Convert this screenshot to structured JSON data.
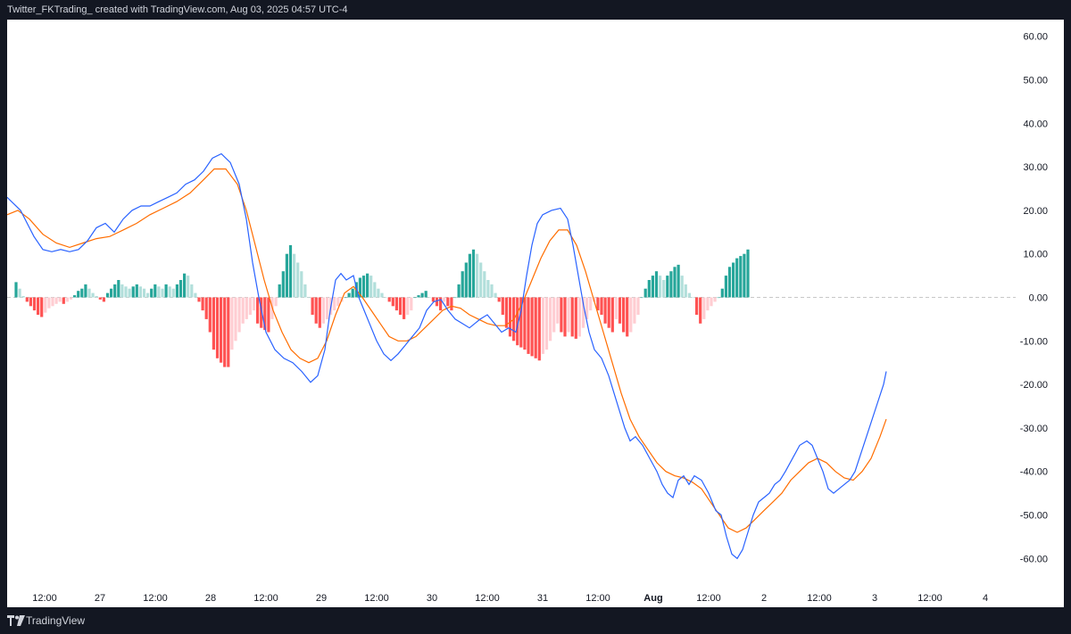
{
  "header": {
    "title": "Twitter_FKTrading_ created with TradingView.com, Aug 03, 2025 04:57 UTC-4"
  },
  "footer": {
    "brand": "TradingView",
    "logo_icon": "tradingview-logo-icon"
  },
  "chart_data": {
    "type": "histogram-line",
    "indicator": "MACD",
    "ylim": [
      -65,
      63
    ],
    "y_ticks": [
      "60.00",
      "50.00",
      "40.00",
      "30.00",
      "20.00",
      "10.00",
      "0.00",
      "-10.00",
      "-20.00",
      "-30.00",
      "-40.00",
      "-50.00",
      "-60.00"
    ],
    "y_tick_values": [
      60,
      50,
      40,
      30,
      20,
      10,
      0,
      -10,
      -20,
      -30,
      -40,
      -50,
      -60
    ],
    "x_range": [
      0,
      1090
    ],
    "x_ticks": [
      {
        "label": "12:00",
        "x": 42,
        "bold": false
      },
      {
        "label": "27",
        "x": 104,
        "bold": false
      },
      {
        "label": "12:00",
        "x": 166,
        "bold": false
      },
      {
        "label": "28",
        "x": 228,
        "bold": false
      },
      {
        "label": "12:00",
        "x": 290,
        "bold": false
      },
      {
        "label": "29",
        "x": 352,
        "bold": false
      },
      {
        "label": "12:00",
        "x": 414,
        "bold": false
      },
      {
        "label": "30",
        "x": 476,
        "bold": false
      },
      {
        "label": "12:00",
        "x": 538,
        "bold": false
      },
      {
        "label": "31",
        "x": 600,
        "bold": false
      },
      {
        "label": "12:00",
        "x": 662,
        "bold": false
      },
      {
        "label": "Aug",
        "x": 724,
        "bold": true
      },
      {
        "label": "12:00",
        "x": 786,
        "bold": false
      },
      {
        "label": "2",
        "x": 848,
        "bold": false
      },
      {
        "label": "12:00",
        "x": 910,
        "bold": false
      },
      {
        "label": "3",
        "x": 972,
        "bold": false
      },
      {
        "label": "12:00",
        "x": 1034,
        "bold": false
      },
      {
        "label": "4",
        "x": 1096,
        "bold": false
      }
    ],
    "colors": {
      "macd": "#2962ff",
      "signal": "#ff6d00",
      "hist_pos_rising": "#26a69a",
      "hist_pos_falling": "#b2dfdb",
      "hist_neg_falling": "#ff5252",
      "hist_neg_rising": "#ffcdd2",
      "zero_line": "#c8c8c8"
    },
    "histogram": {
      "x_start": 10,
      "x_step": 4.1,
      "values": [
        3.5,
        2,
        0.3,
        -1,
        -2,
        -3,
        -4,
        -4.5,
        -3.5,
        -2.5,
        -2,
        -1.5,
        -1,
        -1.5,
        -1,
        -0.5,
        0.5,
        1.5,
        2,
        3,
        2,
        1,
        0.3,
        -0.5,
        -1,
        1,
        2,
        3,
        4,
        3,
        2.5,
        2,
        2.5,
        3,
        2.5,
        2,
        1,
        2,
        3,
        2.5,
        2,
        3,
        2.5,
        2,
        3,
        4,
        5.5,
        5,
        3,
        1,
        -1,
        -3,
        -5,
        -8,
        -12,
        -14,
        -15,
        -16,
        -16,
        -12,
        -10,
        -8,
        -6,
        -5,
        -4,
        -3,
        -6,
        -7,
        -7.5,
        -8,
        -5,
        -2,
        3,
        6,
        10,
        12,
        10,
        8,
        6,
        3,
        0,
        -4,
        -6,
        -7,
        -6,
        -5,
        -4,
        -3,
        -2,
        -1,
        0,
        1,
        2,
        3.5,
        4.5,
        5,
        5.5,
        5,
        3.5,
        2,
        1,
        0,
        -1,
        -2,
        -3,
        -4,
        -5,
        -4,
        -3,
        0,
        0.5,
        1,
        1.5,
        0,
        -1,
        -2,
        -3,
        -1,
        -2,
        -3,
        0,
        3,
        6,
        8,
        10,
        11,
        10,
        8,
        6,
        4,
        3,
        1,
        -1,
        -4,
        -7,
        -9,
        -10,
        -11,
        -11.5,
        -12,
        -13,
        -13.5,
        -14,
        -14.5,
        -13,
        -12,
        -10,
        -8,
        -6,
        -8,
        -9,
        -8,
        -9,
        -9.5,
        -9,
        -7,
        -5,
        -3,
        -1,
        -3,
        -4,
        -6,
        -7,
        -8,
        -5,
        -6,
        -8,
        -9,
        -8,
        -6,
        -4,
        0,
        2,
        4,
        5,
        6,
        5,
        4,
        5,
        6,
        7,
        7.5,
        5,
        3,
        1,
        0,
        -4,
        -6,
        -5,
        -3,
        -2,
        -1,
        0,
        2,
        5,
        7,
        8,
        9,
        9.5,
        10,
        11
      ]
    },
    "macd": [
      [
        0,
        23
      ],
      [
        15,
        20
      ],
      [
        30,
        14
      ],
      [
        40,
        11
      ],
      [
        50,
        10.5
      ],
      [
        60,
        11
      ],
      [
        70,
        10.5
      ],
      [
        80,
        11
      ],
      [
        90,
        13
      ],
      [
        100,
        16
      ],
      [
        110,
        17
      ],
      [
        120,
        15
      ],
      [
        130,
        18
      ],
      [
        140,
        20
      ],
      [
        150,
        21
      ],
      [
        160,
        21
      ],
      [
        170,
        22
      ],
      [
        180,
        23
      ],
      [
        190,
        24
      ],
      [
        200,
        26
      ],
      [
        210,
        27
      ],
      [
        220,
        29
      ],
      [
        230,
        32
      ],
      [
        240,
        33
      ],
      [
        250,
        31
      ],
      [
        260,
        26
      ],
      [
        268,
        18
      ],
      [
        275,
        8
      ],
      [
        282,
        0
      ],
      [
        290,
        -8
      ],
      [
        300,
        -12
      ],
      [
        310,
        -14
      ],
      [
        320,
        -15
      ],
      [
        330,
        -17
      ],
      [
        340,
        -19.5
      ],
      [
        348,
        -18
      ],
      [
        356,
        -12
      ],
      [
        362,
        -3
      ],
      [
        368,
        4
      ],
      [
        374,
        5.5
      ],
      [
        380,
        4
      ],
      [
        388,
        5
      ],
      [
        394,
        0
      ],
      [
        400,
        -3
      ],
      [
        406,
        -6
      ],
      [
        414,
        -10
      ],
      [
        422,
        -13
      ],
      [
        430,
        -14.5
      ],
      [
        438,
        -13
      ],
      [
        446,
        -11
      ],
      [
        454,
        -9
      ],
      [
        462,
        -7
      ],
      [
        470,
        -3
      ],
      [
        478,
        -1
      ],
      [
        486,
        -0.5
      ],
      [
        494,
        -3
      ],
      [
        502,
        -5
      ],
      [
        510,
        -6
      ],
      [
        518,
        -7
      ],
      [
        524,
        -6
      ],
      [
        530,
        -5
      ],
      [
        538,
        -4
      ],
      [
        546,
        -6
      ],
      [
        554,
        -8
      ],
      [
        562,
        -7
      ],
      [
        570,
        -8
      ],
      [
        576,
        -3
      ],
      [
        582,
        5
      ],
      [
        588,
        12
      ],
      [
        594,
        17
      ],
      [
        600,
        19
      ],
      [
        610,
        20
      ],
      [
        620,
        20.5
      ],
      [
        628,
        18
      ],
      [
        634,
        12
      ],
      [
        640,
        5
      ],
      [
        646,
        -2
      ],
      [
        652,
        -8
      ],
      [
        658,
        -12
      ],
      [
        666,
        -14
      ],
      [
        674,
        -18
      ],
      [
        680,
        -22
      ],
      [
        686,
        -26
      ],
      [
        692,
        -30
      ],
      [
        698,
        -33
      ],
      [
        704,
        -32
      ],
      [
        712,
        -34
      ],
      [
        720,
        -37
      ],
      [
        728,
        -40
      ],
      [
        734,
        -43
      ],
      [
        740,
        -45
      ],
      [
        746,
        -46
      ],
      [
        752,
        -42
      ],
      [
        758,
        -41
      ],
      [
        764,
        -43
      ],
      [
        770,
        -41
      ],
      [
        778,
        -42
      ],
      [
        786,
        -45
      ],
      [
        794,
        -49
      ],
      [
        800,
        -50
      ],
      [
        806,
        -55
      ],
      [
        812,
        -59
      ],
      [
        818,
        -60
      ],
      [
        824,
        -58
      ],
      [
        830,
        -54
      ],
      [
        836,
        -50
      ],
      [
        842,
        -47
      ],
      [
        848,
        -46
      ],
      [
        854,
        -45
      ],
      [
        860,
        -43
      ],
      [
        866,
        -42
      ],
      [
        872,
        -40
      ],
      [
        880,
        -37
      ],
      [
        888,
        -34
      ],
      [
        896,
        -33
      ],
      [
        902,
        -34
      ],
      [
        908,
        -37
      ],
      [
        914,
        -40
      ],
      [
        920,
        -44
      ],
      [
        926,
        -45
      ],
      [
        932,
        -44
      ],
      [
        938,
        -43
      ],
      [
        944,
        -42
      ],
      [
        950,
        -40
      ],
      [
        958,
        -35
      ],
      [
        966,
        -30
      ],
      [
        974,
        -25
      ],
      [
        982,
        -20
      ],
      [
        985,
        -17
      ]
    ],
    "signal": [
      [
        0,
        19
      ],
      [
        12,
        20
      ],
      [
        25,
        18
      ],
      [
        40,
        14.5
      ],
      [
        55,
        12.5
      ],
      [
        70,
        11.5
      ],
      [
        85,
        12.5
      ],
      [
        100,
        13.5
      ],
      [
        115,
        14
      ],
      [
        130,
        15.5
      ],
      [
        145,
        17
      ],
      [
        160,
        19
      ],
      [
        175,
        20.5
      ],
      [
        190,
        22
      ],
      [
        205,
        24
      ],
      [
        220,
        27
      ],
      [
        232,
        29.5
      ],
      [
        245,
        29.5
      ],
      [
        258,
        26
      ],
      [
        268,
        20
      ],
      [
        278,
        12
      ],
      [
        288,
        4
      ],
      [
        298,
        -3
      ],
      [
        308,
        -8
      ],
      [
        318,
        -12
      ],
      [
        328,
        -14
      ],
      [
        338,
        -15
      ],
      [
        348,
        -14
      ],
      [
        358,
        -10
      ],
      [
        368,
        -4
      ],
      [
        378,
        1
      ],
      [
        388,
        2.5
      ],
      [
        398,
        0
      ],
      [
        408,
        -3
      ],
      [
        418,
        -6
      ],
      [
        428,
        -9
      ],
      [
        438,
        -10
      ],
      [
        448,
        -10
      ],
      [
        458,
        -9
      ],
      [
        468,
        -7
      ],
      [
        478,
        -5
      ],
      [
        488,
        -3
      ],
      [
        498,
        -2
      ],
      [
        508,
        -2.5
      ],
      [
        518,
        -4
      ],
      [
        528,
        -5
      ],
      [
        538,
        -6
      ],
      [
        548,
        -6.5
      ],
      [
        558,
        -6.5
      ],
      [
        568,
        -5
      ],
      [
        578,
        -1
      ],
      [
        588,
        4
      ],
      [
        598,
        9
      ],
      [
        608,
        13
      ],
      [
        618,
        15.5
      ],
      [
        628,
        15.5
      ],
      [
        638,
        12
      ],
      [
        648,
        6
      ],
      [
        658,
        -1
      ],
      [
        668,
        -8
      ],
      [
        678,
        -15
      ],
      [
        688,
        -22
      ],
      [
        698,
        -28
      ],
      [
        708,
        -32
      ],
      [
        718,
        -35
      ],
      [
        728,
        -38
      ],
      [
        738,
        -40
      ],
      [
        748,
        -41
      ],
      [
        758,
        -41.5
      ],
      [
        768,
        -42.5
      ],
      [
        778,
        -44
      ],
      [
        788,
        -47
      ],
      [
        798,
        -50
      ],
      [
        808,
        -53
      ],
      [
        818,
        -54
      ],
      [
        828,
        -53
      ],
      [
        838,
        -51
      ],
      [
        848,
        -49
      ],
      [
        858,
        -47
      ],
      [
        868,
        -45
      ],
      [
        878,
        -42
      ],
      [
        888,
        -40
      ],
      [
        898,
        -38
      ],
      [
        908,
        -37
      ],
      [
        918,
        -38
      ],
      [
        928,
        -40
      ],
      [
        938,
        -41.5
      ],
      [
        948,
        -42
      ],
      [
        958,
        -40
      ],
      [
        968,
        -37
      ],
      [
        978,
        -32
      ],
      [
        985,
        -28
      ]
    ]
  }
}
